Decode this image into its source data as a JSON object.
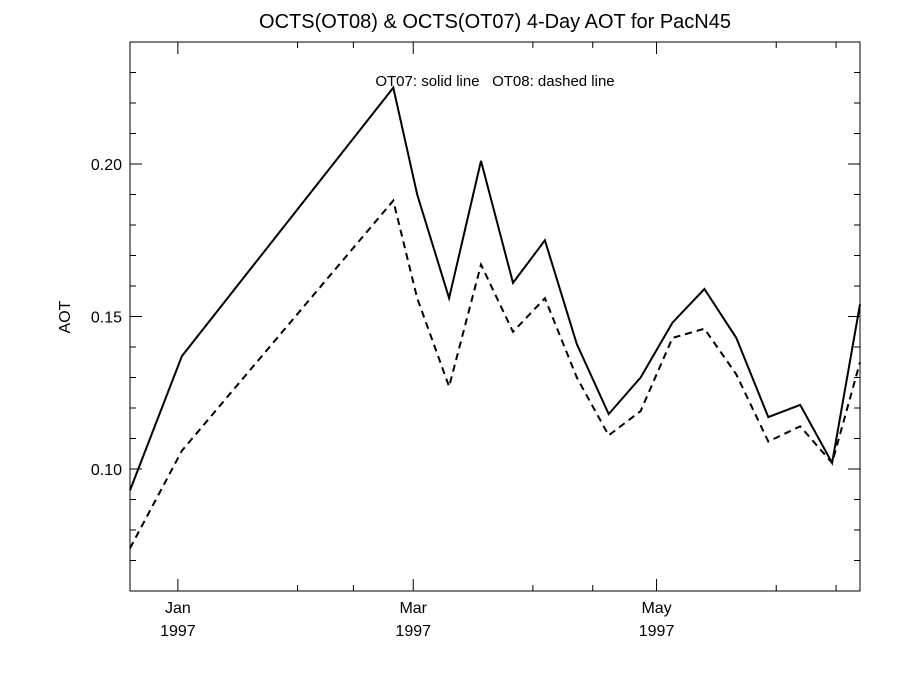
{
  "chart_data": {
    "type": "line",
    "title": "OCTS(OT08) & OCTS(OT07) 4-Day AOT for PacN45",
    "annotation": "OT07: solid line   OT08: dashed line",
    "xlabel": "",
    "ylabel": "AOT",
    "xlim": [
      "1996-12-20",
      "1997-06-21"
    ],
    "ylim": [
      0.06,
      0.24
    ],
    "x_ticks": [
      {
        "x": "1997-01-01",
        "month": "Jan",
        "year": "1997"
      },
      {
        "x": "1997-03-01",
        "month": "Mar",
        "year": "1997"
      },
      {
        "x": "1997-05-01",
        "month": "May",
        "year": "1997"
      }
    ],
    "y_ticks": [
      {
        "value": 0.1,
        "label": "0.10"
      },
      {
        "value": 0.15,
        "label": "0.15"
      },
      {
        "value": 0.2,
        "label": "0.20"
      }
    ],
    "x": [
      "1996-12-20",
      "1997-01-02",
      "1997-02-24",
      "1997-03-02",
      "1997-03-10",
      "1997-03-18",
      "1997-03-26",
      "1997-04-03",
      "1997-04-11",
      "1997-04-19",
      "1997-04-27",
      "1997-05-05",
      "1997-05-13",
      "1997-05-21",
      "1997-05-29",
      "1997-06-06",
      "1997-06-14",
      "1997-06-21"
    ],
    "series": [
      {
        "name": "OT07",
        "style": "solid",
        "values": [
          0.093,
          0.137,
          0.225,
          0.19,
          0.156,
          0.201,
          0.161,
          0.175,
          0.141,
          0.118,
          0.13,
          0.148,
          0.159,
          0.143,
          0.117,
          0.121,
          0.102,
          0.154
        ]
      },
      {
        "name": "OT08",
        "style": "dashed",
        "values": [
          0.074,
          0.106,
          0.188,
          0.156,
          0.127,
          0.167,
          0.145,
          0.156,
          0.13,
          0.111,
          0.119,
          0.143,
          0.146,
          0.131,
          0.109,
          0.114,
          0.102,
          0.135
        ]
      }
    ]
  }
}
